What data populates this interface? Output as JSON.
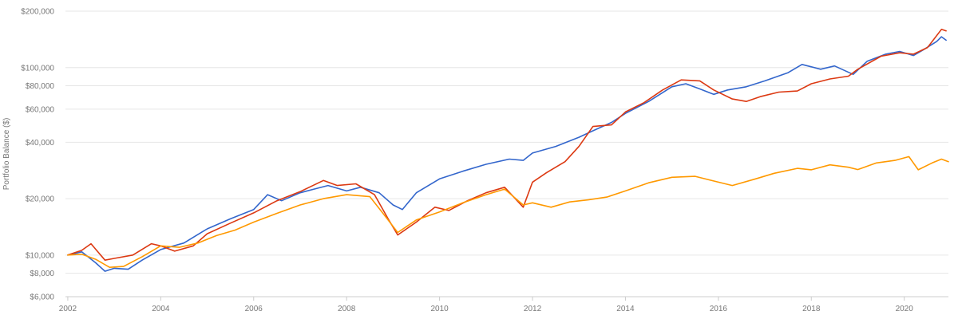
{
  "chart_data": {
    "type": "line",
    "title": "",
    "xlabel": "",
    "ylabel": "Portfolio Balance ($)",
    "yscale": "log",
    "ylim": [
      6000,
      200000
    ],
    "xlim": [
      2001.95,
      2020.95
    ],
    "grid": true,
    "legend": "none",
    "y_ticks": [
      {
        "value": 6000,
        "label": "$6,000"
      },
      {
        "value": 8000,
        "label": "$8,000"
      },
      {
        "value": 10000,
        "label": "$10,000"
      },
      {
        "value": 20000,
        "label": "$20,000"
      },
      {
        "value": 40000,
        "label": "$40,000"
      },
      {
        "value": 60000,
        "label": "$60,000"
      },
      {
        "value": 80000,
        "label": "$80,000"
      },
      {
        "value": 100000,
        "label": "$100,000"
      },
      {
        "value": 200000,
        "label": "$200,000"
      }
    ],
    "x_ticks": [
      {
        "value": 2002,
        "label": "2002"
      },
      {
        "value": 2004,
        "label": "2004"
      },
      {
        "value": 2006,
        "label": "2006"
      },
      {
        "value": 2008,
        "label": "2008"
      },
      {
        "value": 2010,
        "label": "2010"
      },
      {
        "value": 2012,
        "label": "2012"
      },
      {
        "value": 2014,
        "label": "2014"
      },
      {
        "value": 2016,
        "label": "2016"
      },
      {
        "value": 2018,
        "label": "2018"
      },
      {
        "value": 2020,
        "label": "2020"
      }
    ],
    "series": [
      {
        "color": "#3366cc",
        "points": [
          [
            2002.0,
            10000
          ],
          [
            2002.3,
            10400
          ],
          [
            2002.6,
            9100
          ],
          [
            2002.8,
            8200
          ],
          [
            2003.0,
            8500
          ],
          [
            2003.3,
            8400
          ],
          [
            2003.6,
            9400
          ],
          [
            2004.0,
            10700
          ],
          [
            2004.5,
            11600
          ],
          [
            2005.0,
            13800
          ],
          [
            2005.5,
            15600
          ],
          [
            2006.0,
            17500
          ],
          [
            2006.3,
            21000
          ],
          [
            2006.6,
            19500
          ],
          [
            2007.0,
            21500
          ],
          [
            2007.3,
            22500
          ],
          [
            2007.6,
            23500
          ],
          [
            2008.0,
            22000
          ],
          [
            2008.3,
            23000
          ],
          [
            2008.7,
            21500
          ],
          [
            2009.0,
            18500
          ],
          [
            2009.2,
            17500
          ],
          [
            2009.5,
            21500
          ],
          [
            2010.0,
            25500
          ],
          [
            2010.5,
            28000
          ],
          [
            2011.0,
            30500
          ],
          [
            2011.5,
            32500
          ],
          [
            2011.8,
            32000
          ],
          [
            2012.0,
            35000
          ],
          [
            2012.5,
            38000
          ],
          [
            2013.0,
            42500
          ],
          [
            2013.3,
            46000
          ],
          [
            2013.7,
            51000
          ],
          [
            2014.0,
            57000
          ],
          [
            2014.5,
            66000
          ],
          [
            2015.0,
            79000
          ],
          [
            2015.3,
            82000
          ],
          [
            2015.6,
            77000
          ],
          [
            2015.9,
            72000
          ],
          [
            2016.2,
            76000
          ],
          [
            2016.6,
            79000
          ],
          [
            2017.0,
            85000
          ],
          [
            2017.5,
            94000
          ],
          [
            2017.8,
            104000
          ],
          [
            2018.2,
            98000
          ],
          [
            2018.5,
            102000
          ],
          [
            2018.9,
            92000
          ],
          [
            2019.2,
            108000
          ],
          [
            2019.6,
            118000
          ],
          [
            2019.9,
            122000
          ],
          [
            2020.2,
            116000
          ],
          [
            2020.4,
            124000
          ],
          [
            2020.7,
            138000
          ],
          [
            2020.8,
            146000
          ],
          [
            2020.9,
            140000
          ]
        ]
      },
      {
        "color": "#dc3912",
        "points": [
          [
            2002.0,
            10000
          ],
          [
            2002.3,
            10600
          ],
          [
            2002.5,
            11500
          ],
          [
            2002.8,
            9400
          ],
          [
            2003.0,
            9600
          ],
          [
            2003.4,
            10000
          ],
          [
            2003.8,
            11500
          ],
          [
            2004.0,
            11200
          ],
          [
            2004.3,
            10500
          ],
          [
            2004.7,
            11200
          ],
          [
            2005.0,
            13000
          ],
          [
            2005.5,
            14800
          ],
          [
            2006.0,
            16800
          ],
          [
            2006.5,
            19500
          ],
          [
            2007.0,
            21800
          ],
          [
            2007.5,
            25000
          ],
          [
            2007.8,
            23500
          ],
          [
            2008.2,
            24000
          ],
          [
            2008.6,
            21000
          ],
          [
            2008.9,
            15500
          ],
          [
            2009.1,
            12800
          ],
          [
            2009.5,
            15000
          ],
          [
            2009.9,
            18000
          ],
          [
            2010.2,
            17300
          ],
          [
            2010.6,
            19500
          ],
          [
            2011.0,
            21500
          ],
          [
            2011.4,
            23000
          ],
          [
            2011.8,
            18000
          ],
          [
            2012.0,
            24500
          ],
          [
            2012.3,
            27500
          ],
          [
            2012.7,
            31500
          ],
          [
            2013.0,
            38000
          ],
          [
            2013.3,
            48500
          ],
          [
            2013.7,
            49500
          ],
          [
            2014.0,
            58000
          ],
          [
            2014.4,
            65000
          ],
          [
            2014.8,
            76000
          ],
          [
            2015.2,
            86000
          ],
          [
            2015.6,
            85000
          ],
          [
            2015.9,
            76000
          ],
          [
            2016.3,
            68000
          ],
          [
            2016.6,
            66000
          ],
          [
            2016.9,
            70000
          ],
          [
            2017.3,
            74000
          ],
          [
            2017.7,
            75000
          ],
          [
            2018.0,
            82000
          ],
          [
            2018.4,
            87000
          ],
          [
            2018.8,
            90000
          ],
          [
            2019.0,
            98000
          ],
          [
            2019.5,
            115000
          ],
          [
            2019.9,
            120000
          ],
          [
            2020.2,
            118000
          ],
          [
            2020.5,
            128000
          ],
          [
            2020.8,
            160000
          ],
          [
            2020.9,
            157000
          ]
        ]
      },
      {
        "color": "#ff9900",
        "points": [
          [
            2002.0,
            10000
          ],
          [
            2002.3,
            10100
          ],
          [
            2002.6,
            9500
          ],
          [
            2002.9,
            8600
          ],
          [
            2003.2,
            8700
          ],
          [
            2003.6,
            9800
          ],
          [
            2004.0,
            11200
          ],
          [
            2004.4,
            11000
          ],
          [
            2004.8,
            11600
          ],
          [
            2005.2,
            12700
          ],
          [
            2005.6,
            13600
          ],
          [
            2006.0,
            15000
          ],
          [
            2006.5,
            16700
          ],
          [
            2007.0,
            18500
          ],
          [
            2007.5,
            20000
          ],
          [
            2008.0,
            21000
          ],
          [
            2008.5,
            20500
          ],
          [
            2008.8,
            16500
          ],
          [
            2009.1,
            13200
          ],
          [
            2009.5,
            15400
          ],
          [
            2010.0,
            17000
          ],
          [
            2010.5,
            19000
          ],
          [
            2011.0,
            21000
          ],
          [
            2011.4,
            22500
          ],
          [
            2011.8,
            18500
          ],
          [
            2012.0,
            19000
          ],
          [
            2012.4,
            18000
          ],
          [
            2012.8,
            19200
          ],
          [
            2013.2,
            19700
          ],
          [
            2013.6,
            20400
          ],
          [
            2014.0,
            22000
          ],
          [
            2014.5,
            24300
          ],
          [
            2015.0,
            26000
          ],
          [
            2015.5,
            26300
          ],
          [
            2016.0,
            24500
          ],
          [
            2016.3,
            23500
          ],
          [
            2016.8,
            25500
          ],
          [
            2017.2,
            27300
          ],
          [
            2017.7,
            29000
          ],
          [
            2018.0,
            28500
          ],
          [
            2018.4,
            30300
          ],
          [
            2018.8,
            29400
          ],
          [
            2019.0,
            28600
          ],
          [
            2019.4,
            31000
          ],
          [
            2019.8,
            32000
          ],
          [
            2020.1,
            33500
          ],
          [
            2020.3,
            28500
          ],
          [
            2020.6,
            31000
          ],
          [
            2020.8,
            32500
          ],
          [
            2020.95,
            31500
          ]
        ]
      }
    ]
  }
}
